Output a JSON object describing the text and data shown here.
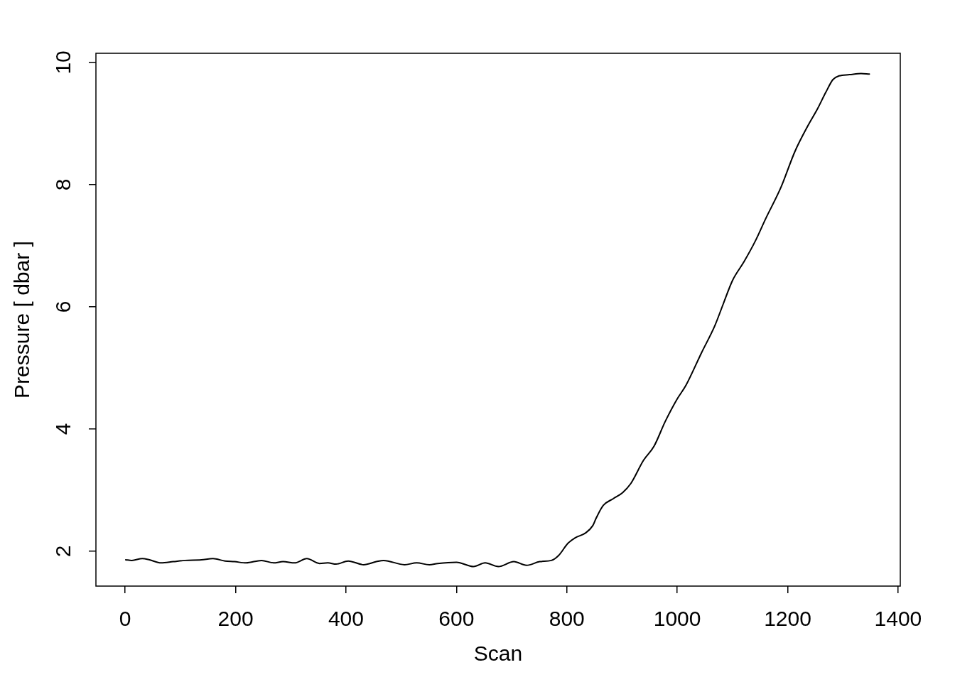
{
  "chart_data": {
    "type": "line",
    "xlabel": "Scan",
    "ylabel": "Pressure [ dbar ]",
    "xlim": [
      -53,
      1404
    ],
    "ylim": [
      1.43,
      10.15
    ],
    "xticks": [
      0,
      200,
      400,
      600,
      800,
      1000,
      1200,
      1400
    ],
    "yticks": [
      2,
      4,
      6,
      8,
      10
    ],
    "grid": false,
    "legend": false,
    "marker": "none",
    "line_style": "solid",
    "x": [
      1,
      12,
      31,
      44,
      65,
      87,
      108,
      138,
      159,
      181,
      198,
      219,
      247,
      269,
      286,
      307,
      329,
      352,
      367,
      382,
      404,
      432,
      455,
      468,
      506,
      528,
      551,
      566,
      600,
      631,
      652,
      676,
      704,
      727,
      751,
      772,
      785,
      802,
      815,
      834,
      847,
      853,
      866,
      884,
      901,
      916,
      939,
      958,
      978,
      999,
      1016,
      1044,
      1068,
      1083,
      1100,
      1121,
      1141,
      1160,
      1188,
      1213,
      1237,
      1254,
      1269,
      1282,
      1293,
      1312,
      1333,
      1348
    ],
    "series": [
      {
        "color": "#000000",
        "values": [
          1.86,
          1.85,
          1.88,
          1.86,
          1.81,
          1.83,
          1.85,
          1.86,
          1.88,
          1.84,
          1.83,
          1.81,
          1.85,
          1.81,
          1.83,
          1.81,
          1.88,
          1.8,
          1.81,
          1.79,
          1.84,
          1.78,
          1.83,
          1.85,
          1.78,
          1.81,
          1.78,
          1.8,
          1.82,
          1.75,
          1.81,
          1.75,
          1.83,
          1.77,
          1.83,
          1.85,
          1.93,
          2.13,
          2.22,
          2.3,
          2.42,
          2.54,
          2.75,
          2.86,
          2.96,
          3.11,
          3.49,
          3.72,
          4.12,
          4.48,
          4.72,
          5.25,
          5.69,
          6.04,
          6.43,
          6.74,
          7.07,
          7.44,
          7.96,
          8.54,
          8.97,
          9.24,
          9.51,
          9.72,
          9.78,
          9.8,
          9.82,
          9.81
        ]
      }
    ]
  }
}
